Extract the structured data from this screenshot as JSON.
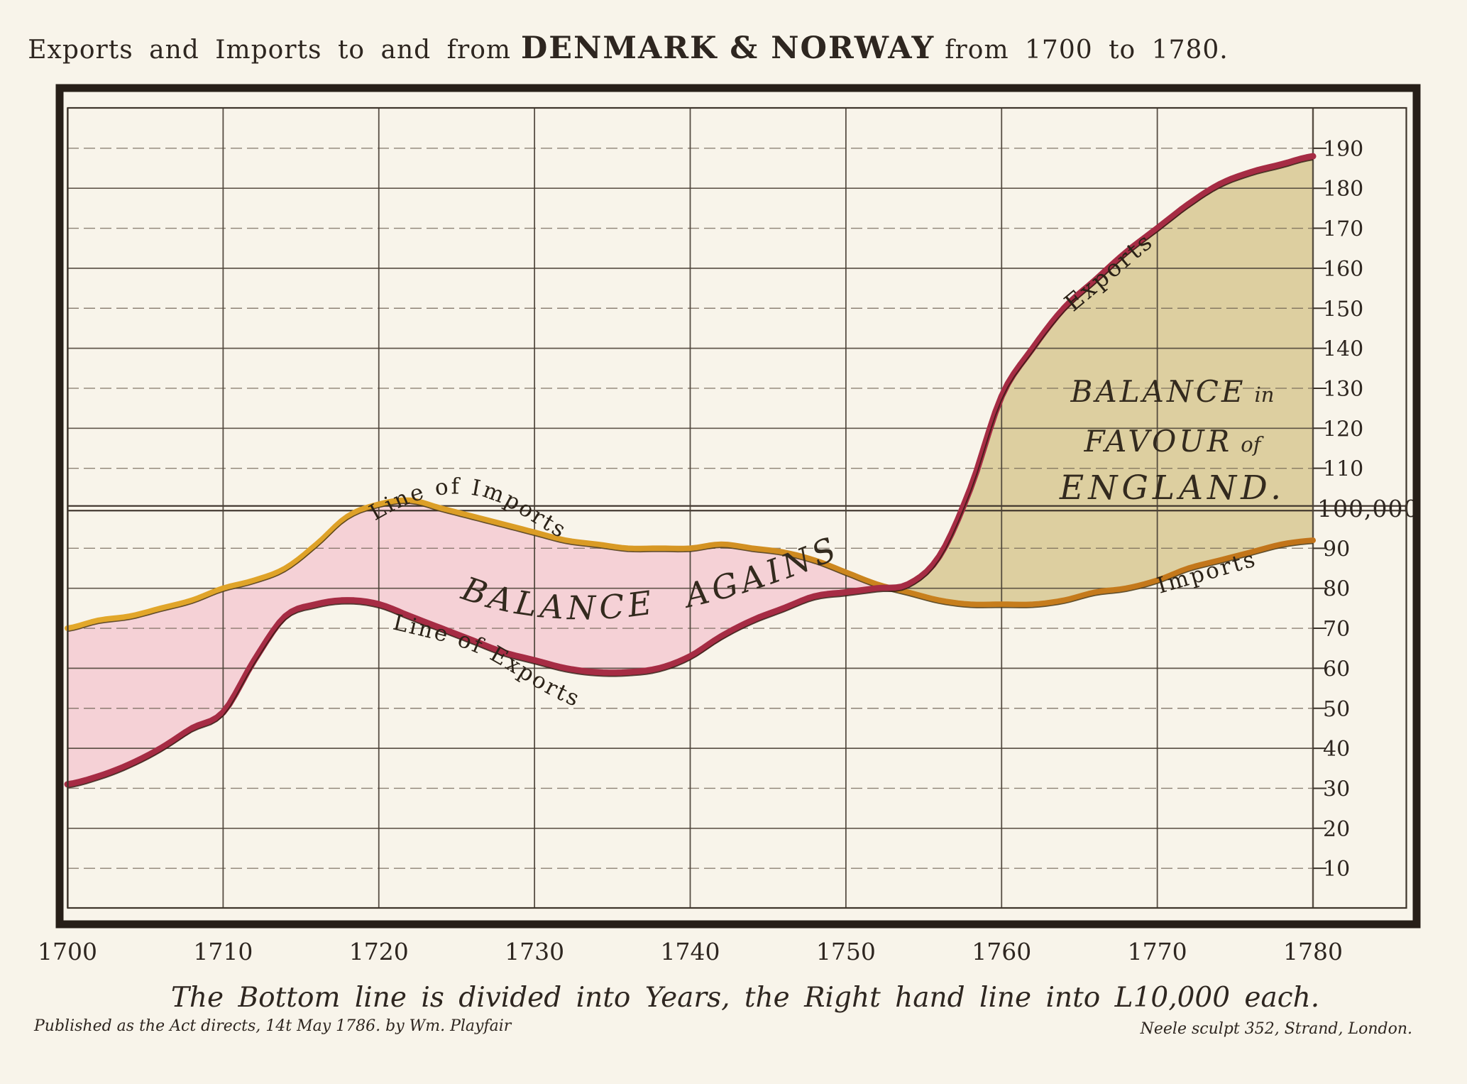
{
  "title": {
    "part1": "Exports and Imports to and from",
    "emphasis": "DENMARK & NORWAY",
    "part3": "from 1700 to 1780."
  },
  "captions": {
    "bottom": "The Bottom line is divided into Years, the Right hand line into L10,000 each.",
    "published": "Published as the Act directs, 14t May 1786. by Wm. Playfair",
    "engraver": "Neele sculpt 352, Strand, London."
  },
  "labels": {
    "line_of_imports": "Line of Imports",
    "line_of_exports": "Line of Exports",
    "balance_against": "BALANCE AGAINST",
    "balance_favour_l1a": "BALANCE",
    "balance_favour_l1b": "in",
    "balance_favour_l2a": "FAVOUR",
    "balance_favour_l2b": "of",
    "balance_favour_l3": "ENGLAND.",
    "exports_curve": "Exports",
    "imports_curve": "Imports"
  },
  "axes": {
    "years": [
      1700,
      1710,
      1720,
      1730,
      1740,
      1750,
      1760,
      1770,
      1780
    ],
    "right_ticks": [
      190,
      180,
      170,
      160,
      150,
      140,
      130,
      120,
      110,
      90,
      80,
      70,
      60,
      50,
      40,
      30,
      20,
      10
    ],
    "hundred_label": "100,000"
  },
  "colors": {
    "paper": "#f8f4ea",
    "pink_fill": "#f5d1d6",
    "tan_fill": "#ddcfa0",
    "exports_line": "#a62c44",
    "imports_line": "#dd9a25",
    "imports_line_dark": "#c4761b",
    "grid": "#51473b",
    "frame": "#271f18",
    "ink": "#2e2620"
  },
  "chart_data": {
    "type": "area",
    "title": "Exports and Imports to and from DENMARK & NORWAY from 1700 to 1780.",
    "xlabel": "Years",
    "ylabel": "L10,000 per division",
    "ylim": [
      0,
      200
    ],
    "xlim": [
      1700,
      1780
    ],
    "grid": "on",
    "x": [
      1700,
      1702,
      1704,
      1706,
      1708,
      1710,
      1712,
      1714,
      1716,
      1718,
      1720,
      1722,
      1724,
      1726,
      1728,
      1730,
      1732,
      1734,
      1736,
      1738,
      1740,
      1742,
      1744,
      1746,
      1748,
      1750,
      1752,
      1754,
      1756,
      1758,
      1760,
      1762,
      1764,
      1766,
      1768,
      1770,
      1772,
      1774,
      1776,
      1778,
      1780
    ],
    "series": [
      {
        "name": "Exports",
        "color": "#a62c44",
        "values": [
          31,
          33,
          36,
          40,
          45,
          49,
          62,
          73,
          76,
          77,
          76,
          73,
          70,
          67,
          64,
          62,
          60,
          59,
          59,
          60,
          63,
          68,
          72,
          75,
          78,
          79,
          80,
          81,
          88,
          105,
          128,
          140,
          150,
          157,
          164,
          170,
          176,
          181,
          184,
          186,
          188
        ]
      },
      {
        "name": "Imports",
        "color": "#dd9a25",
        "values": [
          70,
          72,
          73,
          75,
          77,
          80,
          82,
          85,
          91,
          98,
          101,
          102,
          100,
          98,
          96,
          94,
          92,
          91,
          90,
          90,
          90,
          91,
          90,
          89,
          87,
          84,
          81,
          79,
          77,
          76,
          76,
          76,
          77,
          79,
          80,
          82,
          85,
          87,
          89,
          91,
          92
        ]
      }
    ],
    "regions": [
      {
        "name": "BALANCE AGAINST",
        "meaning": "imports exceed exports",
        "color": "#f5d1d6",
        "span": "1700 to ~1753"
      },
      {
        "name": "BALANCE in FAVOUR of ENGLAND.",
        "meaning": "exports exceed imports",
        "color": "#ddcfa0",
        "span": "~1753 to 1780"
      }
    ],
    "annotations": [
      "Line of Imports",
      "Line of Exports",
      "BALANCE AGAINST",
      "BALANCE in FAVOUR of ENGLAND.",
      "Exports",
      "Imports",
      "100,000"
    ]
  }
}
